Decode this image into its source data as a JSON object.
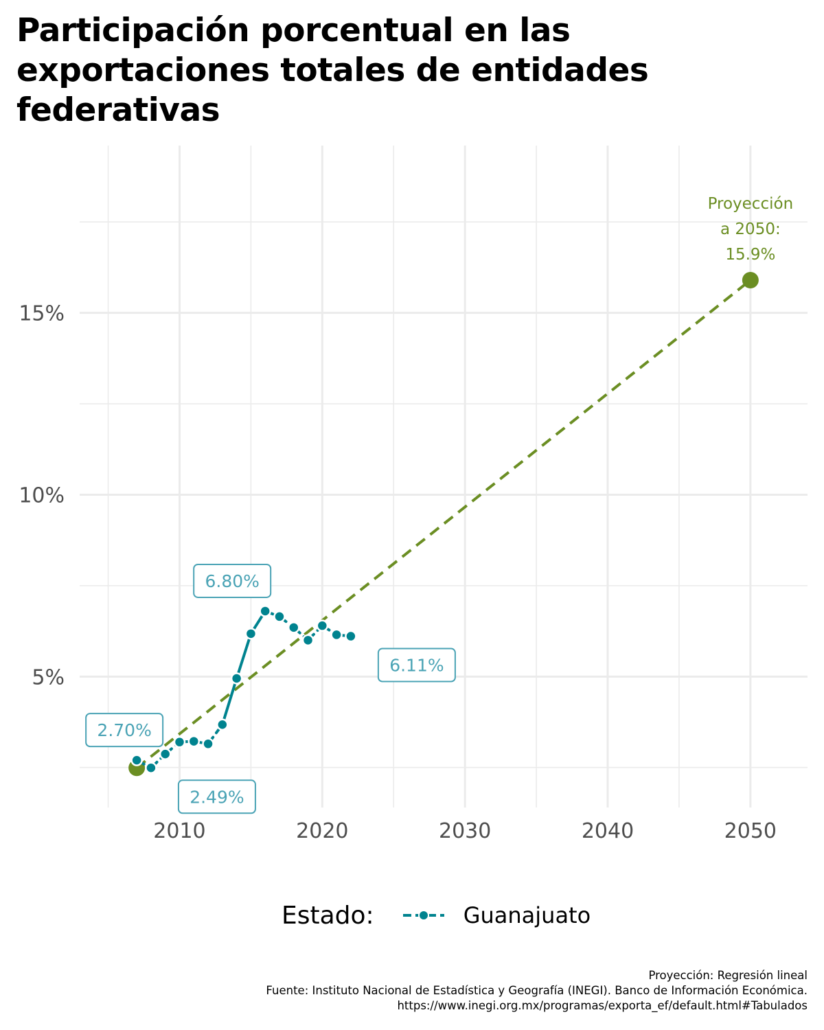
{
  "chart_data": {
    "type": "line",
    "title": "Participación porcentual en las exportaciones totales de entidades federativas",
    "xlabel": "",
    "ylabel": "",
    "xlim": [
      2003,
      2054
    ],
    "ylim": [
      1.4,
      19.6
    ],
    "x_ticks": [
      {
        "value": 2010,
        "label": "2010"
      },
      {
        "value": 2020,
        "label": "2020"
      },
      {
        "value": 2030,
        "label": "2030"
      },
      {
        "value": 2040,
        "label": "2040"
      },
      {
        "value": 2050,
        "label": "2050"
      }
    ],
    "y_ticks": [
      {
        "value": 5,
        "label": "5%"
      },
      {
        "value": 10,
        "label": "10%"
      },
      {
        "value": 15,
        "label": "15%"
      }
    ],
    "grid": true,
    "series": [
      {
        "name": "Guanajuato",
        "color": "#00838f",
        "x": [
          2007,
          2008,
          2009,
          2010,
          2011,
          2012,
          2013,
          2014,
          2015,
          2016,
          2017,
          2018,
          2019,
          2020,
          2021,
          2022
        ],
        "y": [
          2.7,
          2.49,
          2.87,
          3.2,
          3.22,
          3.15,
          3.68,
          4.95,
          6.18,
          6.8,
          6.65,
          6.35,
          6.0,
          6.4,
          6.15,
          6.11
        ]
      }
    ],
    "projection": {
      "color": "#6b8e23",
      "x": [
        2007,
        2050
      ],
      "y": [
        2.49,
        15.9
      ],
      "start_point": {
        "x": 2007,
        "y": 2.49
      },
      "end_point": {
        "x": 2050,
        "y": 15.9
      },
      "label": [
        "Proyección",
        "a 2050:",
        "15.9%"
      ]
    },
    "annotations": [
      {
        "text": "2.70%",
        "x": 2007,
        "y": 2.7,
        "placement": "above"
      },
      {
        "text": "2.49%",
        "x": 2008,
        "y": 2.49,
        "placement": "below-right"
      },
      {
        "text": "6.80%",
        "x": 2016,
        "y": 6.8,
        "placement": "above-left"
      },
      {
        "text": "6.11%",
        "x": 2022,
        "y": 6.11,
        "placement": "below-right"
      }
    ],
    "annotation_color": "#4aa3b5",
    "legend": {
      "title": "Estado:",
      "position": "bottom",
      "entries": [
        "Guanajuato"
      ]
    },
    "caption": [
      "Proyección: Regresión lineal",
      "Fuente: Instituto Nacional de Estadística y Geografía (INEGI). Banco de Información Económica.",
      "https://www.inegi.org.mx/programas/exporta_ef/default.html#Tabulados"
    ]
  }
}
